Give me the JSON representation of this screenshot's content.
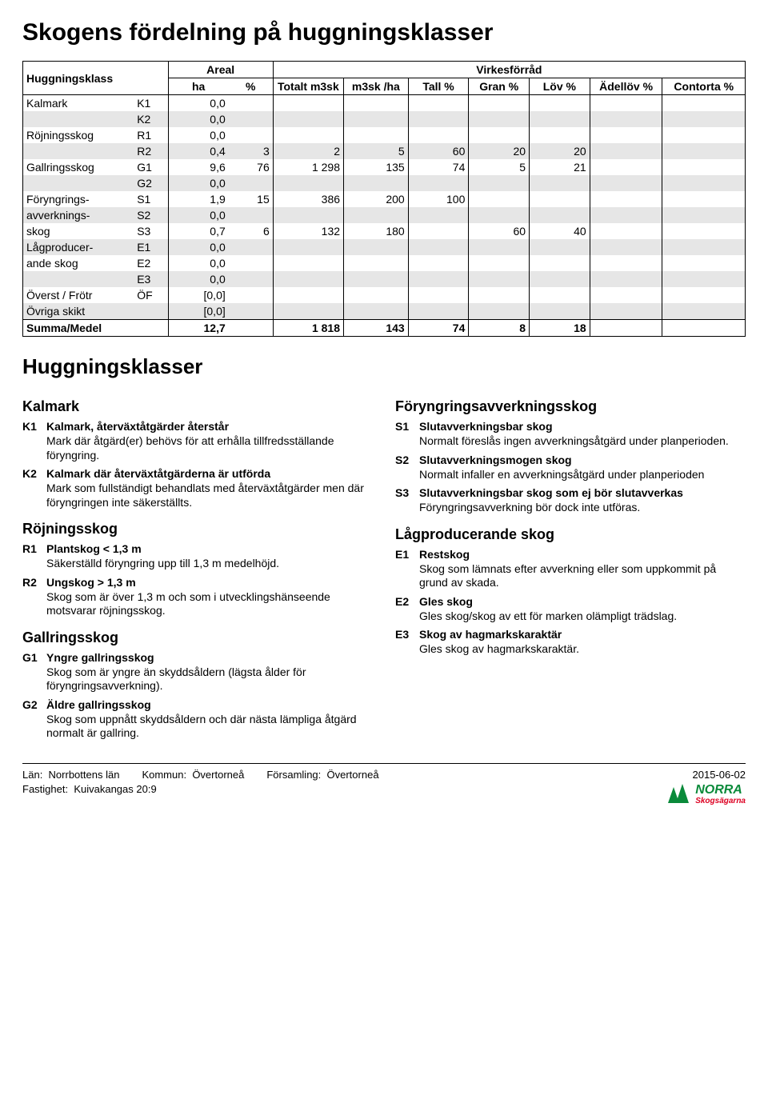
{
  "title": "Skogens fördelning på huggningsklasser",
  "table": {
    "groupHeaders": {
      "areal": "Areal",
      "virke": "Virkesförråd"
    },
    "headers": {
      "hugg": "Huggningsklass",
      "ha": "ha",
      "pct": "%",
      "totalt": "Totalt m3sk",
      "m3ha": "m3sk /ha",
      "tall": "Tall %",
      "gran": "Gran %",
      "lov": "Löv %",
      "adel": "Ädellöv %",
      "contorta": "Contorta %"
    },
    "rows": [
      {
        "label": "Kalmark",
        "code": "K1",
        "ha": "0,0",
        "pct": "",
        "t": "",
        "mh": "",
        "ta": "",
        "gr": "",
        "lv": "",
        "ad": "",
        "co": "",
        "shade": false
      },
      {
        "label": "",
        "code": "K2",
        "ha": "0,0",
        "pct": "",
        "t": "",
        "mh": "",
        "ta": "",
        "gr": "",
        "lv": "",
        "ad": "",
        "co": "",
        "shade": true
      },
      {
        "label": "Röjningsskog",
        "code": "R1",
        "ha": "0,0",
        "pct": "",
        "t": "",
        "mh": "",
        "ta": "",
        "gr": "",
        "lv": "",
        "ad": "",
        "co": "",
        "shade": false
      },
      {
        "label": "",
        "code": "R2",
        "ha": "0,4",
        "pct": "3",
        "t": "2",
        "mh": "5",
        "ta": "60",
        "gr": "20",
        "lv": "20",
        "ad": "",
        "co": "",
        "shade": true
      },
      {
        "label": "Gallringsskog",
        "code": "G1",
        "ha": "9,6",
        "pct": "76",
        "t": "1 298",
        "mh": "135",
        "ta": "74",
        "gr": "5",
        "lv": "21",
        "ad": "",
        "co": "",
        "shade": false
      },
      {
        "label": "",
        "code": "G2",
        "ha": "0,0",
        "pct": "",
        "t": "",
        "mh": "",
        "ta": "",
        "gr": "",
        "lv": "",
        "ad": "",
        "co": "",
        "shade": true
      },
      {
        "label": "Föryngrings-",
        "code": "S1",
        "ha": "1,9",
        "pct": "15",
        "t": "386",
        "mh": "200",
        "ta": "100",
        "gr": "",
        "lv": "",
        "ad": "",
        "co": "",
        "shade": false
      },
      {
        "label": "avverknings-",
        "code": "S2",
        "ha": "0,0",
        "pct": "",
        "t": "",
        "mh": "",
        "ta": "",
        "gr": "",
        "lv": "",
        "ad": "",
        "co": "",
        "shade": true
      },
      {
        "label": "skog",
        "code": "S3",
        "ha": "0,7",
        "pct": "6",
        "t": "132",
        "mh": "180",
        "ta": "",
        "gr": "60",
        "lv": "40",
        "ad": "",
        "co": "",
        "shade": false
      },
      {
        "label": "Lågproducer-",
        "code": "E1",
        "ha": "0,0",
        "pct": "",
        "t": "",
        "mh": "",
        "ta": "",
        "gr": "",
        "lv": "",
        "ad": "",
        "co": "",
        "shade": true
      },
      {
        "label": "ande skog",
        "code": "E2",
        "ha": "0,0",
        "pct": "",
        "t": "",
        "mh": "",
        "ta": "",
        "gr": "",
        "lv": "",
        "ad": "",
        "co": "",
        "shade": false
      },
      {
        "label": "",
        "code": "E3",
        "ha": "0,0",
        "pct": "",
        "t": "",
        "mh": "",
        "ta": "",
        "gr": "",
        "lv": "",
        "ad": "",
        "co": "",
        "shade": true
      },
      {
        "label": "Överst / Frötr",
        "code": "ÖF",
        "ha": "[0,0]",
        "pct": "",
        "t": "",
        "mh": "",
        "ta": "",
        "gr": "",
        "lv": "",
        "ad": "",
        "co": "",
        "shade": false
      },
      {
        "label": "Övriga skikt",
        "code": "",
        "ha": "[0,0]",
        "pct": "",
        "t": "",
        "mh": "",
        "ta": "",
        "gr": "",
        "lv": "",
        "ad": "",
        "co": "",
        "shade": true
      }
    ],
    "sum": {
      "label": "Summa/Medel",
      "ha": "12,7",
      "pct": "",
      "t": "1 818",
      "mh": "143",
      "ta": "74",
      "gr": "8",
      "lv": "18",
      "ad": "",
      "co": ""
    }
  },
  "sectionTitle": "Huggningsklasser",
  "left": {
    "kalmark": {
      "title": "Kalmark",
      "k1_code": "K1",
      "k1_label": "Kalmark, återväxtåtgärder återstår",
      "k1_body": "Mark där åtgärd(er) behövs för att erhålla tillfredsställande föryngring.",
      "k2_code": "K2",
      "k2_label": "Kalmark där återväxtåtgärderna är utförda",
      "k2_body": "Mark som fullständigt behandlats med återväxt­åtgärder men där föryngringen inte säkerställts."
    },
    "rojning": {
      "title": "Röjningsskog",
      "r1_code": "R1",
      "r1_label": "Plantskog < 1,3 m",
      "r1_body": "Säkerställd föryngring upp till 1,3 m medelhöjd.",
      "r2_code": "R2",
      "r2_label": "Ungskog > 1,3 m",
      "r2_body": "Skog som är över 1,3 m och som i utvecklings­hänseende motsvarar röjningsskog."
    },
    "gallring": {
      "title": "Gallringsskog",
      "g1_code": "G1",
      "g1_label": "Yngre gallringsskog",
      "g1_body": "Skog som är yngre än skyddsåldern (lägsta ålder för föryngringsavverkning).",
      "g2_code": "G2",
      "g2_label": "Äldre gallringsskog",
      "g2_body": "Skog som uppnått skyddsåldern och där nästa lämpliga åtgärd normalt är gallring."
    }
  },
  "right": {
    "foryngring": {
      "title": "Föryngringsavverkningsskog",
      "s1_code": "S1",
      "s1_label": "Slutavverkningsbar skog",
      "s1_body": "Normalt föreslås ingen avverkningsåtgärd under planperioden.",
      "s2_code": "S2",
      "s2_label": "Slutavverkningsmogen skog",
      "s2_body": "Normalt infaller en avverkningsåtgärd under planperioden",
      "s3_code": "S3",
      "s3_label": "Slutavverkningsbar skog som ej bör slutavverkas",
      "s3_body": "Föryngringsavverkning bör dock inte utföras."
    },
    "lagprod": {
      "title": "Lågproducerande skog",
      "e1_code": "E1",
      "e1_label": "Restskog",
      "e1_body": "Skog som lämnats efter avverkning eller som uppkommit på grund av skada.",
      "e2_code": "E2",
      "e2_label": "Gles skog",
      "e2_body": "Gles skog/skog av ett för marken olämpligt trädslag.",
      "e3_code": "E3",
      "e3_label": "Skog av hagmarkskaraktär",
      "e3_body": "Gles skog av hagmarkskaraktär."
    }
  },
  "footer": {
    "lan_label": "Län:",
    "lan": "Norrbottens län",
    "kommun_label": "Kommun:",
    "kommun": "Övertorneå",
    "forsam_label": "Församling:",
    "forsam": "Övertorneå",
    "fastighet_label": "Fastighet:",
    "fastighet": "Kuivakangas 20:9",
    "date": "2015-06-02",
    "logo_top": "NORRA",
    "logo_bottom": "Skogsägarna"
  },
  "colors": {
    "shade": "#e6e6e6",
    "border": "#000000",
    "logoGreen": "#0a8a3a",
    "logoRed": "#d02030"
  }
}
